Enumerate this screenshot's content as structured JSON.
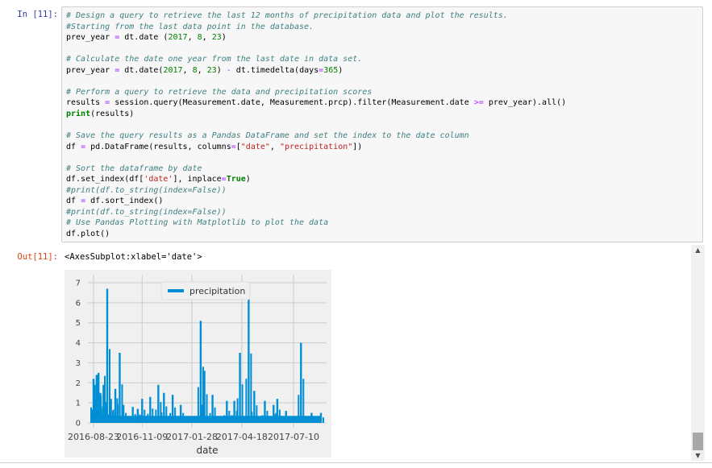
{
  "input_prompt": "In [11]:",
  "output_prompt": "Out[11]:",
  "code_lines": [
    [
      {
        "t": "# Design a query to retrieve the last 12 months of precipitation data and plot the results.",
        "c": "c"
      }
    ],
    [
      {
        "t": "#Starting from the last data point in the database.",
        "c": "c"
      }
    ],
    [
      {
        "t": "prev_year ",
        "c": ""
      },
      {
        "t": "=",
        "c": "o"
      },
      {
        "t": " dt.date (",
        "c": ""
      },
      {
        "t": "2017",
        "c": "n"
      },
      {
        "t": ", ",
        "c": ""
      },
      {
        "t": "8",
        "c": "n"
      },
      {
        "t": ", ",
        "c": ""
      },
      {
        "t": "23",
        "c": "n"
      },
      {
        "t": ")",
        "c": ""
      }
    ],
    [
      {
        "t": "",
        "c": ""
      }
    ],
    [
      {
        "t": "# Calculate the date one year from the last date in data set.",
        "c": "c"
      }
    ],
    [
      {
        "t": "prev_year ",
        "c": ""
      },
      {
        "t": "=",
        "c": "o"
      },
      {
        "t": " dt.date(",
        "c": ""
      },
      {
        "t": "2017",
        "c": "n"
      },
      {
        "t": ", ",
        "c": ""
      },
      {
        "t": "8",
        "c": "n"
      },
      {
        "t": ", ",
        "c": ""
      },
      {
        "t": "23",
        "c": "n"
      },
      {
        "t": ") ",
        "c": ""
      },
      {
        "t": "-",
        "c": "o"
      },
      {
        "t": " dt.timedelta(days",
        "c": ""
      },
      {
        "t": "=",
        "c": "o"
      },
      {
        "t": "365",
        "c": "n"
      },
      {
        "t": ")",
        "c": ""
      }
    ],
    [
      {
        "t": "",
        "c": ""
      }
    ],
    [
      {
        "t": "# Perform a query to retrieve the data and precipitation scores",
        "c": "c"
      }
    ],
    [
      {
        "t": "results ",
        "c": ""
      },
      {
        "t": "=",
        "c": "o"
      },
      {
        "t": " session.query(Measurement.date, Measurement.prcp).filter(Measurement.date ",
        "c": ""
      },
      {
        "t": ">=",
        "c": "o"
      },
      {
        "t": " prev_year).all()",
        "c": ""
      }
    ],
    [
      {
        "t": "print",
        "c": "k"
      },
      {
        "t": "(results)",
        "c": ""
      }
    ],
    [
      {
        "t": "",
        "c": ""
      }
    ],
    [
      {
        "t": "# Save the query results as a Pandas DataFrame and set the index to the date column",
        "c": "c"
      }
    ],
    [
      {
        "t": "df ",
        "c": ""
      },
      {
        "t": "=",
        "c": "o"
      },
      {
        "t": " pd.DataFrame(results, columns",
        "c": ""
      },
      {
        "t": "=",
        "c": "o"
      },
      {
        "t": "[",
        "c": ""
      },
      {
        "t": "\"date\"",
        "c": "s"
      },
      {
        "t": ", ",
        "c": ""
      },
      {
        "t": "\"precipitation\"",
        "c": "s"
      },
      {
        "t": "])",
        "c": ""
      }
    ],
    [
      {
        "t": "",
        "c": ""
      }
    ],
    [
      {
        "t": "# Sort the dataframe by date",
        "c": "c"
      }
    ],
    [
      {
        "t": "df.set_index(df[",
        "c": ""
      },
      {
        "t": "'date'",
        "c": "s"
      },
      {
        "t": "], inplace",
        "c": ""
      },
      {
        "t": "=",
        "c": "o"
      },
      {
        "t": "True",
        "c": "k"
      },
      {
        "t": ")",
        "c": ""
      }
    ],
    [
      {
        "t": "#print(df.to_string(index=False))",
        "c": "c"
      }
    ],
    [
      {
        "t": "df ",
        "c": ""
      },
      {
        "t": "=",
        "c": "o"
      },
      {
        "t": " df.sort_index()",
        "c": ""
      }
    ],
    [
      {
        "t": "#print(df.to_string(index=False))",
        "c": "c"
      }
    ],
    [
      {
        "t": "# Use Pandas Plotting with Matplotlib to plot the data",
        "c": "c"
      }
    ],
    [
      {
        "t": "df.plot()",
        "c": ""
      }
    ]
  ],
  "output_text": "<AxesSubplot:xlabel='date'>",
  "colors": {
    "line": "#008fd5",
    "plot_bg": "#f0f0f0",
    "grid": "#cbcbcb",
    "comment": "#408080"
  },
  "chart_data": {
    "type": "line",
    "xlabel": "date",
    "ylabel": "",
    "x_tick_labels": [
      "2016-08-23",
      "2016-11-09",
      "2017-01-28",
      "2017-04-18",
      "2017-07-10"
    ],
    "x_ticks": [
      "2016-08-23",
      "2016-11-09",
      "2017-01-28",
      "2017-04-18",
      "2017-07-10"
    ],
    "xlim": [
      "2016-08-23",
      "2017-08-23"
    ],
    "y_ticks": [
      0,
      1,
      2,
      3,
      4,
      5,
      6,
      7
    ],
    "ylim": [
      0,
      7
    ],
    "grid": true,
    "legend_position": "top-center",
    "series": [
      {
        "name": "precipitation",
        "spikes": [
          {
            "date": "2016-08-23",
            "value": 2.2
          },
          {
            "date": "2016-08-25",
            "value": 1.9
          },
          {
            "date": "2016-08-28",
            "value": 2.4
          },
          {
            "date": "2016-08-31",
            "value": 2.5
          },
          {
            "date": "2016-09-03",
            "value": 1.5
          },
          {
            "date": "2016-09-08",
            "value": 1.9
          },
          {
            "date": "2016-09-14",
            "value": 6.7
          },
          {
            "date": "2016-09-20",
            "value": 1.2
          },
          {
            "date": "2016-09-27",
            "value": 1.7
          },
          {
            "date": "2016-10-04",
            "value": 3.5
          },
          {
            "date": "2016-10-10",
            "value": 0.9
          },
          {
            "date": "2016-10-25",
            "value": 0.8
          },
          {
            "date": "2016-11-02",
            "value": 0.7
          },
          {
            "date": "2016-11-09",
            "value": 1.2
          },
          {
            "date": "2016-11-22",
            "value": 1.3
          },
          {
            "date": "2016-12-05",
            "value": 1.9
          },
          {
            "date": "2016-12-14",
            "value": 1.5
          },
          {
            "date": "2016-12-28",
            "value": 1.4
          },
          {
            "date": "2017-01-10",
            "value": 0.9
          },
          {
            "date": "2017-02-11",
            "value": 5.1
          },
          {
            "date": "2017-02-17",
            "value": 2.6
          },
          {
            "date": "2017-03-02",
            "value": 1.4
          },
          {
            "date": "2017-03-25",
            "value": 1.1
          },
          {
            "date": "2017-04-06",
            "value": 1.1
          },
          {
            "date": "2017-04-15",
            "value": 3.5
          },
          {
            "date": "2017-04-29",
            "value": 6.3
          },
          {
            "date": "2017-05-08",
            "value": 1.6
          },
          {
            "date": "2017-05-25",
            "value": 1.1
          },
          {
            "date": "2017-06-08",
            "value": 0.9
          },
          {
            "date": "2017-06-14",
            "value": 1.2
          },
          {
            "date": "2017-06-28",
            "value": 0.6
          },
          {
            "date": "2017-07-22",
            "value": 4.0
          },
          {
            "date": "2017-08-08",
            "value": 0.5
          },
          {
            "date": "2017-08-23",
            "value": 0.5
          }
        ]
      }
    ]
  }
}
